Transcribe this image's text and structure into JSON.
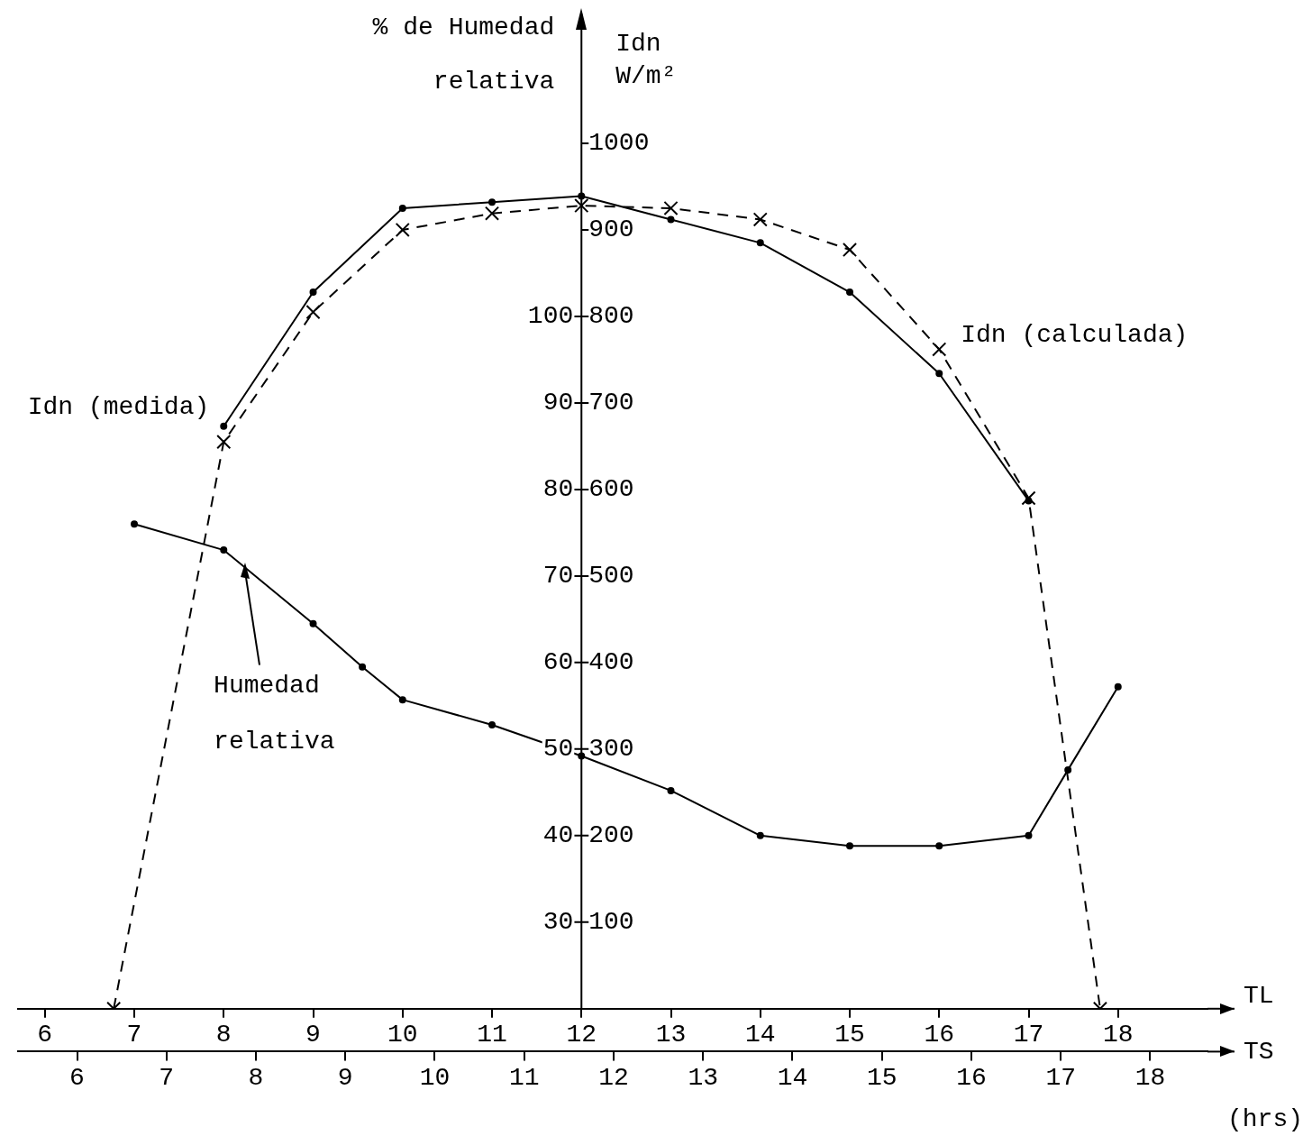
{
  "chart_data": {
    "type": "line",
    "xlabel": "TL",
    "x2label": "TS",
    "ylabel": "Idn W/m²",
    "y2label": "% de Humedad relativa",
    "annotations": [
      "(hrs)"
    ],
    "xlim": [
      5.7,
      19
    ],
    "xticks": [
      6,
      7,
      8,
      9,
      10,
      11,
      12,
      13,
      14,
      15,
      16,
      17,
      18
    ],
    "x2lim": [
      5.34,
      18.64
    ],
    "x2ticks": [
      6,
      7,
      8,
      9,
      10,
      11,
      12,
      13,
      14,
      15,
      16,
      17,
      18
    ],
    "ylim": [
      0,
      1150
    ],
    "yticks": [
      100,
      200,
      300,
      400,
      500,
      600,
      700,
      800,
      900,
      1000
    ],
    "y2lim": [
      20,
      135
    ],
    "y2ticks": [
      30,
      40,
      50,
      60,
      70,
      80,
      90,
      100
    ],
    "grid": false,
    "legend": false,
    "series": [
      {
        "name": "Idn (medida)",
        "color": "#000000",
        "marker": "circle",
        "line_style": "solid",
        "x": [
          8,
          9,
          10,
          11,
          12,
          13,
          14,
          15,
          16,
          17
        ],
        "values": [
          673,
          828,
          925,
          932,
          939,
          912,
          885,
          828,
          734,
          587
        ]
      },
      {
        "name": "Idn (calculada)",
        "color": "#000000",
        "marker": "cross",
        "line_style": "dashed",
        "x": [
          6.77,
          8,
          9,
          10,
          11,
          12,
          13,
          14,
          15,
          16,
          17,
          17.8
        ],
        "values": [
          0,
          655,
          805,
          900,
          919,
          928,
          925,
          912,
          877,
          762,
          590,
          0
        ]
      },
      {
        "name": "Humedad relativa",
        "color": "#000000",
        "marker": "circle",
        "line_style": "solid",
        "axis": "y2",
        "x": [
          7,
          8,
          9,
          9.55,
          10,
          11,
          12,
          13,
          14,
          15,
          16,
          17,
          17.44,
          18
        ],
        "values": [
          76,
          73,
          64.5,
          59.5,
          55.7,
          52.8,
          49.2,
          45.2,
          40,
          38.8,
          38.8,
          40,
          47.6,
          57.2
        ]
      }
    ]
  }
}
